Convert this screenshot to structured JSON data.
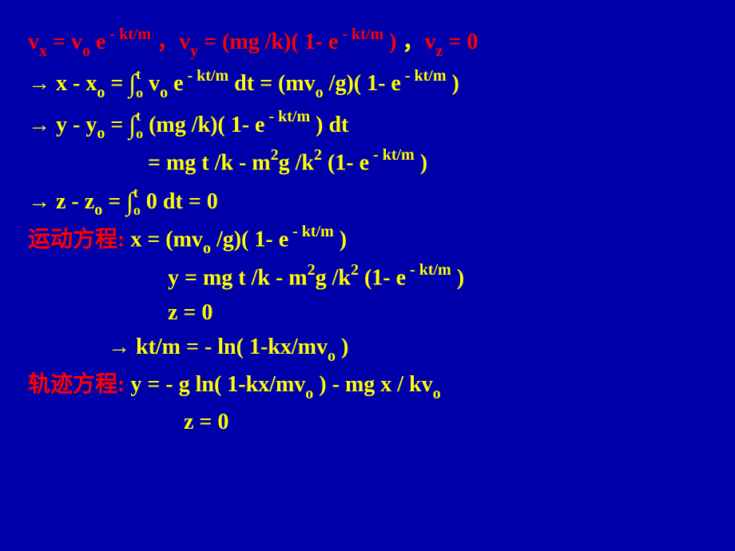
{
  "colors": {
    "background": "#0000aa",
    "text": "#ffff00",
    "highlight": "#ff0000"
  },
  "font": {
    "family": "Times New Roman",
    "size_pt": 28,
    "weight": "bold"
  },
  "lines": {
    "l1_vx": "v",
    "l1_x": "x",
    "l1_eq": " = v",
    "l1_o": "o",
    "l1_e": " e",
    "l1_exp1": " - kt/m",
    "l1_comma": " ，",
    "l1_vy": "v",
    "l1_y": "y",
    "l1_eq2": " = (mg /k)( 1- e",
    "l1_exp2": " - kt/m",
    "l1_close": " )",
    "l1_comma2": " ，",
    "l1_vz": "v",
    "l1_z": "z",
    "l1_eq3": " = 0",
    "l2_arrow": "→ x - x",
    "l2_o": "o",
    "l2_eq": " = ",
    "l2_int": "∫",
    "l2_intsub": "o",
    "l2_intsup": "t",
    "l2_vo": " v",
    "l2_o2": "o",
    "l2_e": " e",
    "l2_exp": " - kt/m",
    "l2_dt": " dt = (mv",
    "l2_o3": "o",
    "l2_rest": " /g)( 1- e",
    "l2_exp2": " - kt/m",
    "l2_close": " )",
    "l3_arrow": "→ y - y",
    "l3_o": "o",
    "l3_eq": " = ",
    "l3_int": "∫",
    "l3_intsub": "o",
    "l3_intsup": "t",
    "l3_rest": " (mg /k)( 1- e",
    "l3_exp": " - kt/m",
    "l3_close": " ) dt",
    "l4_eq": "= mg t /k - m",
    "l4_sup1": "2",
    "l4_g": "g /k",
    "l4_sup2": "2",
    "l4_rest": " (1- e",
    "l4_exp": " - kt/m",
    "l4_close": " )",
    "l5_arrow": "→ z - z",
    "l5_o": "o",
    "l5_eq": " = ",
    "l5_int": "∫",
    "l5_intsub": "o",
    "l5_intsup": "t",
    "l5_rest": " 0 dt = 0",
    "l6_label": "运动方程:",
    "l6_x": "   x = (mv",
    "l6_o": "o",
    "l6_rest": " /g)( 1- e",
    "l6_exp": " - kt/m",
    "l6_close": " )",
    "l7_y": "y = mg t /k - m",
    "l7_sup1": "2",
    "l7_g": "g /k",
    "l7_sup2": "2",
    "l7_rest": " (1- e",
    "l7_exp": " - kt/m",
    "l7_close": " )",
    "l8_z": "z = 0",
    "l9": "→ kt/m = - ln( 1-kx/mv",
    "l9_o": "o",
    "l9_close": " )",
    "l10_label": "轨迹方程:",
    "l10_rest": "  y = - g ln( 1-kx/mv",
    "l10_o": "o",
    "l10_mid": " ) - mg x / kv",
    "l10_o2": "o",
    "l11_z": "z = 0"
  }
}
